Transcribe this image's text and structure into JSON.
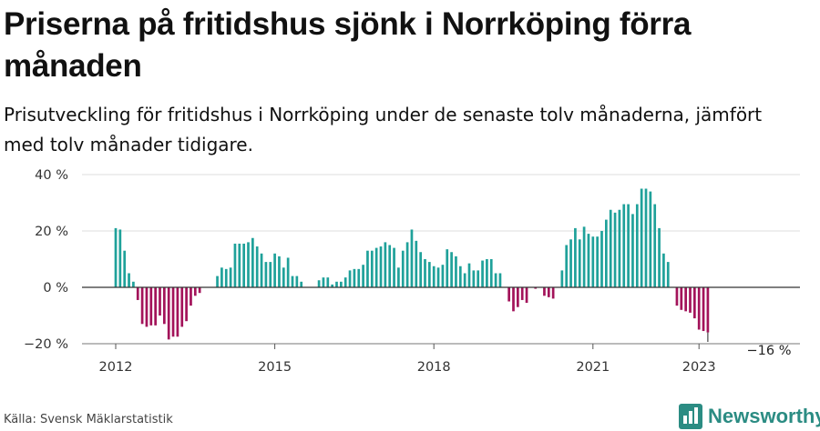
{
  "title": "Priserna på fritidshus sjönk i Norrköping förra månaden",
  "subtitle": "Prisutveckling för fritidshus i Norrköping under de senaste tolv månaderna, jämfört med tolv månader tidigare.",
  "source": "Källa: Svensk Mäklarstatistik",
  "brand": {
    "name": "Newsworthy",
    "icon": "bar-chart-logo-icon",
    "color": "#2b8c83"
  },
  "colors": {
    "positive": "#1fa19a",
    "negative": "#a3135a",
    "grid": "#dddddd",
    "axis": "#333333",
    "text": "#333333"
  },
  "chart_data": {
    "type": "bar",
    "title": "Priserna på fritidshus sjönk i Norrköping förra månaden",
    "ylim": [
      -20,
      40
    ],
    "yticks": [
      40,
      20,
      0,
      -20
    ],
    "ytick_labels": [
      "40 %",
      "20 %",
      "0 %",
      "−20 %"
    ],
    "xtick_labels": [
      {
        "label": "2012",
        "index": 0
      },
      {
        "label": "2015",
        "index": 36
      },
      {
        "label": "2018",
        "index": 72
      },
      {
        "label": "2021",
        "index": 108
      },
      {
        "label": "2023",
        "index": 132
      }
    ],
    "grid": true,
    "start": "2012-01",
    "last_label": "−16 %",
    "values": [
      21,
      20.5,
      13,
      5,
      2,
      -4.5,
      -13,
      -14,
      -13.5,
      -13.5,
      -10,
      -13,
      -18.5,
      -17.5,
      -17.5,
      -14,
      -12,
      -6.5,
      -3,
      -2,
      null,
      null,
      null,
      4,
      7,
      6.5,
      7,
      15.5,
      15.5,
      15.5,
      16,
      17.5,
      14.5,
      12,
      9,
      9,
      12,
      11,
      7,
      10.5,
      4,
      4,
      2,
      null,
      null,
      null,
      2.5,
      3.5,
      3.5,
      1,
      2,
      2,
      3.5,
      6,
      6.5,
      6.5,
      8,
      13,
      13,
      14,
      14.5,
      16,
      15,
      14,
      7,
      13,
      16,
      20.5,
      16.5,
      12.5,
      10,
      9,
      7.5,
      7,
      8,
      13.5,
      12.5,
      11,
      7.5,
      5,
      8.5,
      6,
      6,
      9.5,
      10,
      10,
      5,
      5,
      null,
      -5,
      -8.5,
      -7,
      -4.5,
      -5.5,
      null,
      -0.5,
      null,
      -3,
      -3.5,
      -4,
      null,
      6,
      15,
      17,
      21,
      17,
      21.5,
      19,
      18,
      18,
      20,
      24,
      27.5,
      26.5,
      27.5,
      29.5,
      29.5,
      26,
      29.5,
      35,
      35,
      34,
      29.5,
      21,
      12,
      9,
      null,
      -6.5,
      -8,
      -8.5,
      -9,
      -11,
      -15,
      -15.5,
      -16
    ]
  }
}
